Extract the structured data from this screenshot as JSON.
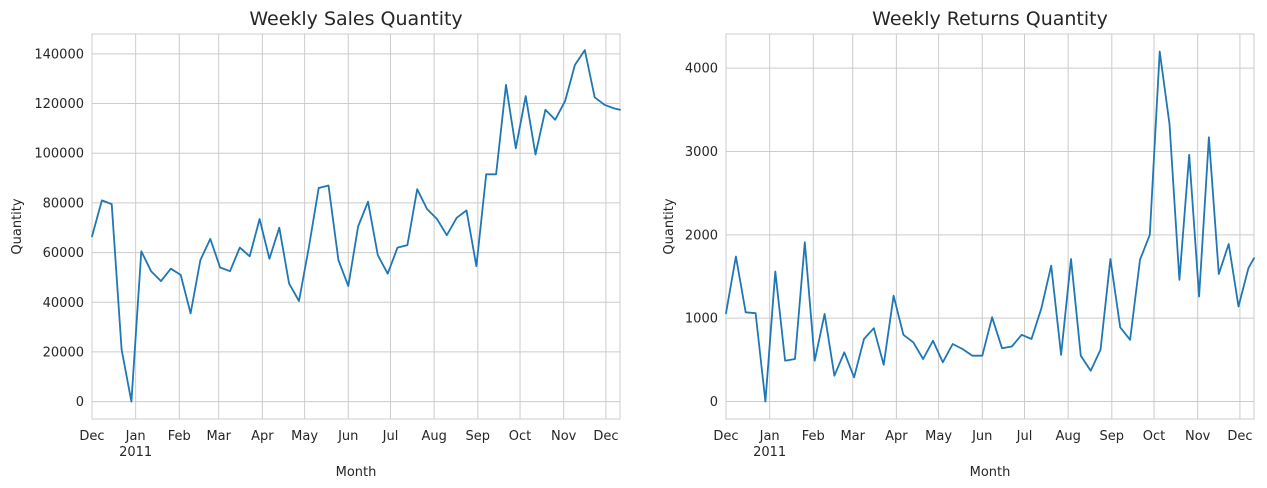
{
  "chart_data": [
    {
      "type": "line",
      "title": "Weekly Sales Quantity",
      "xlabel": "Month",
      "ylabel": "Quantity",
      "grid": true,
      "line_color": "#1f77b4",
      "xlim": [
        "2010-12-01",
        "2011-12-11"
      ],
      "ylim": [
        -7000,
        148000
      ],
      "y_ticks": [
        0,
        20000,
        40000,
        60000,
        80000,
        100000,
        120000,
        140000
      ],
      "y_tick_labels": [
        "0",
        "20000",
        "40000",
        "60000",
        "80000",
        "100000",
        "120000",
        "140000"
      ],
      "x_ticks": [
        "2010-12-01",
        "2011-01-01",
        "2011-02-01",
        "2011-03-01",
        "2011-04-01",
        "2011-05-01",
        "2011-06-01",
        "2011-07-01",
        "2011-08-01",
        "2011-09-01",
        "2011-10-01",
        "2011-11-01",
        "2011-12-01"
      ],
      "x_tick_labels": [
        "Dec",
        "Jan",
        "Feb",
        "Mar",
        "Apr",
        "May",
        "Jun",
        "Jul",
        "Aug",
        "Sep",
        "Oct",
        "Nov",
        "Dec"
      ],
      "x_year_label": "2011",
      "series": [
        {
          "x": [
            "2010-12-01",
            "2010-12-08",
            "2010-12-15",
            "2010-12-22",
            "2010-12-29",
            "2011-01-05",
            "2011-01-12",
            "2011-01-19",
            "2011-01-26",
            "2011-02-02",
            "2011-02-09",
            "2011-02-16",
            "2011-02-23",
            "2011-03-02",
            "2011-03-09",
            "2011-03-16",
            "2011-03-23",
            "2011-03-30",
            "2011-04-06",
            "2011-04-13",
            "2011-04-20",
            "2011-04-27",
            "2011-05-04",
            "2011-05-11",
            "2011-05-18",
            "2011-05-25",
            "2011-06-01",
            "2011-06-08",
            "2011-06-15",
            "2011-06-22",
            "2011-06-29",
            "2011-07-06",
            "2011-07-13",
            "2011-07-20",
            "2011-07-27",
            "2011-08-03",
            "2011-08-10",
            "2011-08-17",
            "2011-08-24",
            "2011-08-31",
            "2011-09-07",
            "2011-09-14",
            "2011-09-21",
            "2011-09-28",
            "2011-10-05",
            "2011-10-12",
            "2011-10-19",
            "2011-10-26",
            "2011-11-02",
            "2011-11-09",
            "2011-11-16",
            "2011-11-23",
            "2011-11-30",
            "2011-12-07",
            "2011-12-11"
          ],
          "values": [
            66500,
            81000,
            79500,
            21000,
            0,
            60500,
            52500,
            48500,
            53500,
            51000,
            35500,
            57000,
            65500,
            54000,
            52500,
            62000,
            58500,
            73500,
            57500,
            70000,
            47500,
            40500,
            62000,
            86000,
            87000,
            57000,
            46500,
            70500,
            80500,
            59000,
            51500,
            62000,
            63000,
            85500,
            77500,
            73500,
            67000,
            74000,
            77000,
            54500,
            91500,
            91500,
            127500,
            102000,
            123000,
            99500,
            117500,
            113500,
            121000,
            135500,
            141500,
            122500,
            119500,
            118000,
            117500
          ]
        }
      ]
    },
    {
      "type": "line",
      "title": "Weekly Returns Quantity",
      "xlabel": "Month",
      "ylabel": "Quantity",
      "grid": true,
      "line_color": "#1f77b4",
      "xlim": [
        "2010-12-01",
        "2011-12-11"
      ],
      "ylim": [
        -210,
        4410
      ],
      "y_ticks": [
        0,
        1000,
        2000,
        3000,
        4000
      ],
      "y_tick_labels": [
        "0",
        "1000",
        "2000",
        "3000",
        "4000"
      ],
      "x_ticks": [
        "2010-12-01",
        "2011-01-01",
        "2011-02-01",
        "2011-03-01",
        "2011-04-01",
        "2011-05-01",
        "2011-06-01",
        "2011-07-01",
        "2011-08-01",
        "2011-09-01",
        "2011-10-01",
        "2011-11-01",
        "2011-12-01"
      ],
      "x_tick_labels": [
        "Dec",
        "Jan",
        "Feb",
        "Mar",
        "Apr",
        "May",
        "Jun",
        "Jul",
        "Aug",
        "Sep",
        "Oct",
        "Nov",
        "Dec"
      ],
      "x_year_label": "2011",
      "series": [
        {
          "x": [
            "2010-12-01",
            "2010-12-08",
            "2010-12-15",
            "2010-12-22",
            "2010-12-29",
            "2011-01-05",
            "2011-01-12",
            "2011-01-19",
            "2011-01-26",
            "2011-02-02",
            "2011-02-09",
            "2011-02-16",
            "2011-02-23",
            "2011-03-02",
            "2011-03-09",
            "2011-03-16",
            "2011-03-23",
            "2011-03-30",
            "2011-04-06",
            "2011-04-13",
            "2011-04-20",
            "2011-04-27",
            "2011-05-04",
            "2011-05-11",
            "2011-05-18",
            "2011-05-25",
            "2011-06-01",
            "2011-06-08",
            "2011-06-15",
            "2011-06-22",
            "2011-06-29",
            "2011-07-06",
            "2011-07-13",
            "2011-07-20",
            "2011-07-27",
            "2011-08-03",
            "2011-08-10",
            "2011-08-17",
            "2011-08-24",
            "2011-08-31",
            "2011-09-07",
            "2011-09-14",
            "2011-09-21",
            "2011-09-28",
            "2011-10-05",
            "2011-10-12",
            "2011-10-19",
            "2011-10-26",
            "2011-11-02",
            "2011-11-09",
            "2011-11-16",
            "2011-11-23",
            "2011-11-30",
            "2011-12-07",
            "2011-12-11"
          ],
          "values": [
            1060,
            1740,
            1070,
            1060,
            0,
            1560,
            490,
            510,
            1910,
            490,
            1050,
            310,
            590,
            290,
            750,
            880,
            440,
            1270,
            800,
            710,
            510,
            730,
            470,
            690,
            630,
            550,
            550,
            1010,
            640,
            660,
            800,
            750,
            1120,
            1630,
            560,
            1710,
            550,
            370,
            620,
            1710,
            890,
            740,
            1700,
            2000,
            4200,
            3330,
            1460,
            2960,
            1260,
            3170,
            1530,
            1890,
            1140,
            1600,
            1720
          ]
        }
      ]
    }
  ]
}
